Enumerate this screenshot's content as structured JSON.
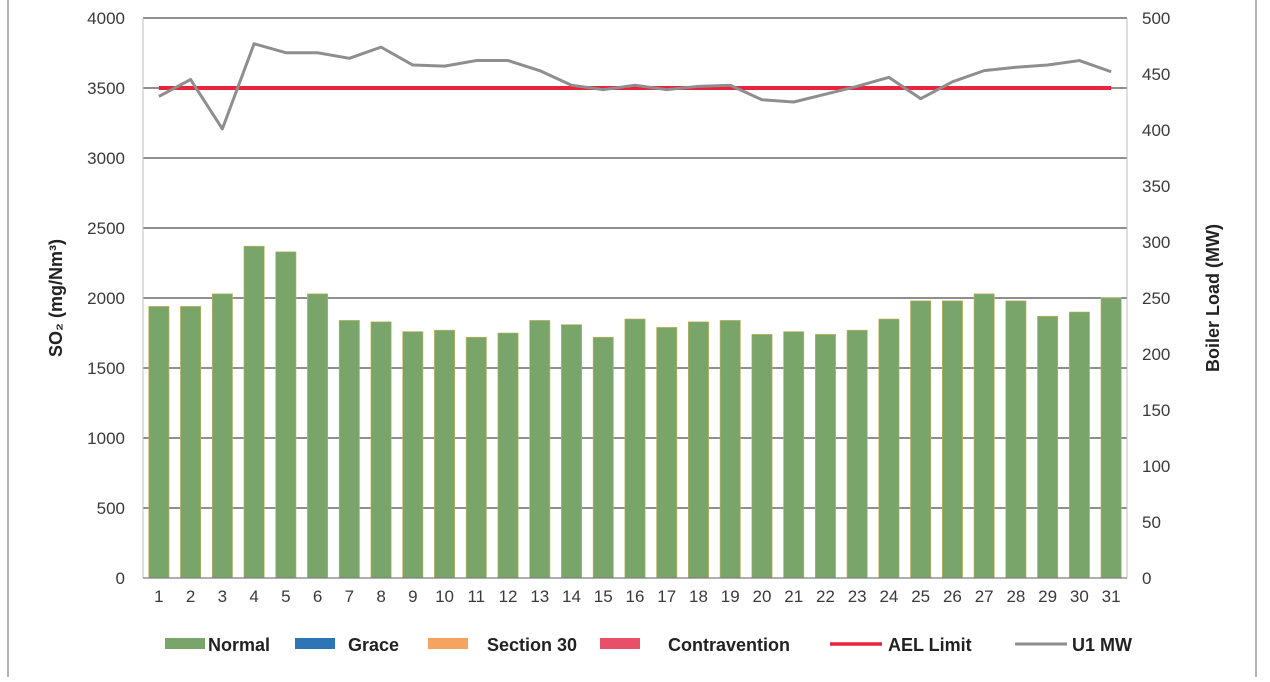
{
  "chart_data": {
    "type": "bar",
    "categories": [
      "1",
      "2",
      "3",
      "4",
      "5",
      "6",
      "7",
      "8",
      "9",
      "10",
      "11",
      "12",
      "13",
      "14",
      "15",
      "16",
      "17",
      "18",
      "19",
      "20",
      "21",
      "22",
      "23",
      "24",
      "25",
      "26",
      "27",
      "28",
      "29",
      "30",
      "31"
    ],
    "series": [
      {
        "name": "Normal",
        "type": "bar",
        "axis": "left",
        "color": "#79a56a",
        "values": [
          1940,
          1940,
          2030,
          2370,
          2330,
          2030,
          1840,
          1830,
          1760,
          1770,
          1720,
          1750,
          1840,
          1810,
          1720,
          1850,
          1790,
          1830,
          1840,
          1740,
          1760,
          1740,
          1770,
          1850,
          1980,
          1980,
          2030,
          1980,
          1870,
          1900,
          2000
        ]
      },
      {
        "name": "Grace",
        "type": "bar",
        "axis": "left",
        "color": "#2e75b6",
        "values": [
          0,
          0,
          0,
          0,
          0,
          0,
          0,
          0,
          0,
          0,
          0,
          0,
          0,
          0,
          0,
          0,
          0,
          0,
          0,
          0,
          0,
          0,
          0,
          0,
          0,
          0,
          0,
          0,
          0,
          0,
          0
        ]
      },
      {
        "name": "Section 30",
        "type": "bar",
        "axis": "left",
        "color": "#f4a460",
        "values": [
          0,
          0,
          0,
          0,
          0,
          0,
          0,
          0,
          0,
          0,
          0,
          0,
          0,
          0,
          0,
          0,
          0,
          0,
          0,
          0,
          0,
          0,
          0,
          0,
          0,
          0,
          0,
          0,
          0,
          0,
          0
        ]
      },
      {
        "name": "Contravention",
        "type": "bar",
        "axis": "left",
        "color": "#e8506a",
        "values": [
          0,
          0,
          0,
          0,
          0,
          0,
          0,
          0,
          0,
          0,
          0,
          0,
          0,
          0,
          0,
          0,
          0,
          0,
          0,
          0,
          0,
          0,
          0,
          0,
          0,
          0,
          0,
          0,
          0,
          0,
          0
        ]
      },
      {
        "name": "AEL Limit",
        "type": "line",
        "axis": "left",
        "color": "#e8233b",
        "values": [
          3500,
          3500,
          3500,
          3500,
          3500,
          3500,
          3500,
          3500,
          3500,
          3500,
          3500,
          3500,
          3500,
          3500,
          3500,
          3500,
          3500,
          3500,
          3500,
          3500,
          3500,
          3500,
          3500,
          3500,
          3500,
          3500,
          3500,
          3500,
          3500,
          3500,
          3500
        ]
      },
      {
        "name": "U1 MW",
        "type": "line",
        "axis": "right",
        "color": "#8e8e8e",
        "values": [
          430,
          445,
          401,
          477,
          469,
          469,
          464,
          474,
          458,
          457,
          462,
          462,
          453,
          440,
          436,
          440,
          436,
          439,
          440,
          427,
          425,
          432,
          439,
          447,
          428,
          443,
          453,
          456,
          458,
          462,
          452
        ]
      }
    ],
    "ylabel": "SO₂ (mg/Nm³)",
    "ylabel2": "Boiler Load (MW)",
    "ylim": [
      0,
      4000
    ],
    "y2lim": [
      0,
      500
    ],
    "yticks": [
      "0",
      "500",
      "1000",
      "1500",
      "2000",
      "2500",
      "3000",
      "3500",
      "4000"
    ],
    "y2ticks": [
      "0",
      "50",
      "100",
      "150",
      "200",
      "250",
      "300",
      "350",
      "400",
      "450",
      "500"
    ],
    "grid": true,
    "legend_position": "bottom"
  }
}
